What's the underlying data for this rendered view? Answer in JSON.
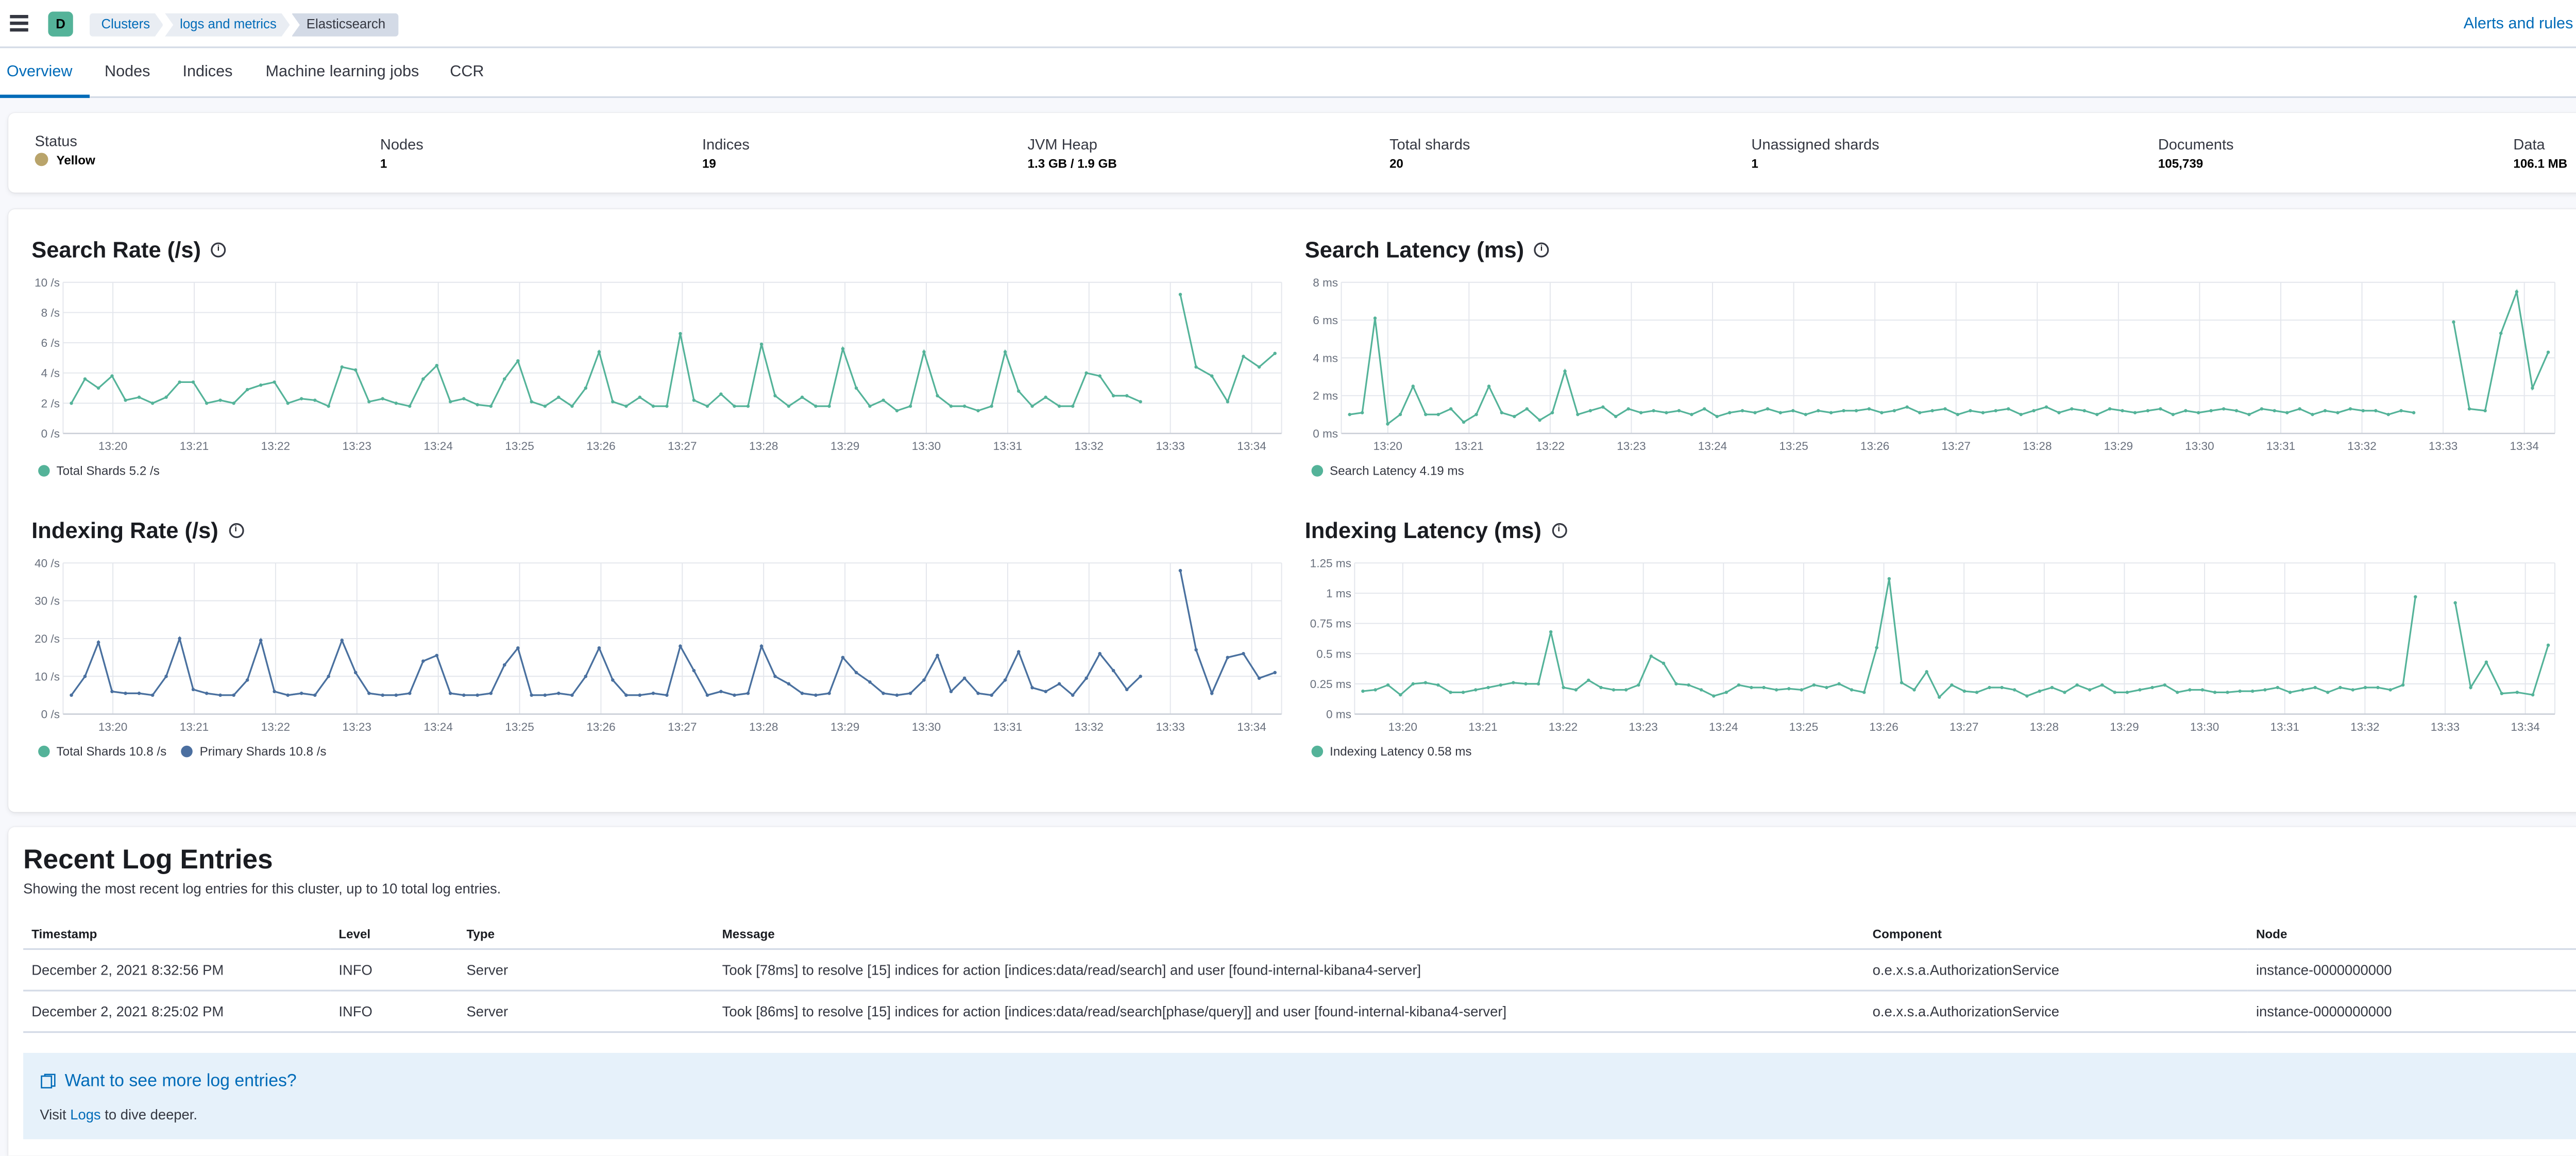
{
  "header": {
    "avatar": "D",
    "breadcrumbs": [
      "Clusters",
      "logs and metrics",
      "Elasticsearch"
    ],
    "alerts_label": "Alerts and rules"
  },
  "tabs": [
    "Overview",
    "Nodes",
    "Indices",
    "Machine learning jobs",
    "CCR"
  ],
  "status": {
    "status_label": "Status",
    "status_value": "Yellow",
    "nodes_label": "Nodes",
    "nodes_value": "1",
    "indices_label": "Indices",
    "indices_value": "19",
    "jvm_label": "JVM Heap",
    "jvm_value": "1.3 GB / 1.9 GB",
    "shards_label": "Total shards",
    "shards_value": "20",
    "unassigned_label": "Unassigned shards",
    "unassigned_value": "1",
    "docs_label": "Documents",
    "docs_value": "105,739",
    "data_label": "Data",
    "data_value": "106.1 MB",
    "colors": {
      "yellow": "#b9a46b"
    }
  },
  "chart_data": [
    {
      "type": "line",
      "title": "Search Rate (/s)",
      "y_ticks": [
        "10 /s",
        "8 /s",
        "6 /s",
        "4 /s",
        "2 /s",
        "0 /s"
      ],
      "ylim": [
        0,
        10
      ],
      "x_ticks": [
        "13:20",
        "13:21",
        "13:22",
        "13:23",
        "13:24",
        "13:25",
        "13:26",
        "13:27",
        "13:28",
        "13:29",
        "13:30",
        "13:31",
        "13:32",
        "13:33",
        "13:34"
      ],
      "grid": true,
      "legend_position": "bottom-left",
      "series": [
        {
          "name": "Total Shards",
          "legend_value": "5.2 /s",
          "color": "#54b399",
          "segments": [
            [
              2,
              3.6,
              3,
              3.8,
              2.2,
              2.4,
              2,
              2.4,
              3.4,
              3.4,
              2,
              2.2,
              2,
              2.9,
              3.2,
              3.4,
              2,
              2.3,
              2.2,
              1.8,
              4.4,
              4.2,
              2.1,
              2.3,
              2,
              1.8,
              3.6,
              4.5,
              2.1,
              2.3,
              1.9,
              1.8,
              3.6,
              4.8,
              2.1,
              1.8,
              2.4,
              1.8,
              3,
              5.4,
              2.1,
              1.8,
              2.4,
              1.8,
              1.8,
              6.6,
              2.2,
              1.8,
              2.6,
              1.8,
              1.8,
              5.9,
              2.5,
              1.8,
              2.4,
              1.8,
              1.8,
              5.6,
              3,
              1.8,
              2.2,
              1.5,
              1.8,
              5.4,
              2.5,
              1.8,
              1.8,
              1.5,
              1.8,
              5.4,
              2.8,
              1.8,
              2.4,
              1.8,
              1.8,
              4,
              3.8,
              2.5,
              2.5,
              2.1
            ],
            [
              9.2,
              4.4,
              3.8,
              2.1,
              5.1,
              4.4,
              5.3
            ]
          ]
        }
      ]
    },
    {
      "type": "line",
      "title": "Search Latency (ms)",
      "y_ticks": [
        "8 ms",
        "6 ms",
        "4 ms",
        "2 ms",
        "0 ms"
      ],
      "ylim": [
        0,
        8
      ],
      "x_ticks": [
        "13:20",
        "13:21",
        "13:22",
        "13:23",
        "13:24",
        "13:25",
        "13:26",
        "13:27",
        "13:28",
        "13:29",
        "13:30",
        "13:31",
        "13:32",
        "13:33",
        "13:34"
      ],
      "grid": true,
      "legend_position": "bottom-left",
      "series": [
        {
          "name": "Search Latency",
          "legend_value": "4.19 ms",
          "color": "#54b399",
          "segments": [
            [
              1,
              1.1,
              6.1,
              0.5,
              1,
              2.5,
              1,
              1,
              1.3,
              0.6,
              1,
              2.5,
              1.1,
              0.9,
              1.3,
              0.7,
              1.1,
              3.3,
              1,
              1.2,
              1.4,
              0.9,
              1.3,
              1.1,
              1.2,
              1.1,
              1.2,
              1,
              1.3,
              0.9,
              1.1,
              1.2,
              1.1,
              1.3,
              1.1,
              1.2,
              1,
              1.2,
              1.1,
              1.2,
              1.2,
              1.3,
              1.1,
              1.2,
              1.4,
              1.1,
              1.2,
              1.3,
              1,
              1.2,
              1.1,
              1.2,
              1.3,
              1,
              1.2,
              1.4,
              1.1,
              1.3,
              1.2,
              1,
              1.3,
              1.2,
              1.1,
              1.2,
              1.3,
              1,
              1.2,
              1.1,
              1.2,
              1.3,
              1.2,
              1,
              1.3,
              1.2,
              1.1,
              1.3,
              1,
              1.2,
              1.1,
              1.3,
              1.2,
              1.2,
              1,
              1.2,
              1.1
            ],
            [
              5.9,
              1.3,
              1.2,
              5.3,
              7.5,
              2.4,
              4.3
            ]
          ]
        }
      ]
    },
    {
      "type": "line",
      "title": "Indexing Rate (/s)",
      "y_ticks": [
        "40 /s",
        "30 /s",
        "20 /s",
        "10 /s",
        "0 /s"
      ],
      "ylim": [
        0,
        40
      ],
      "x_ticks": [
        "13:20",
        "13:21",
        "13:22",
        "13:23",
        "13:24",
        "13:25",
        "13:26",
        "13:27",
        "13:28",
        "13:29",
        "13:30",
        "13:31",
        "13:32",
        "13:33",
        "13:34"
      ],
      "grid": true,
      "legend_position": "bottom-left",
      "series": [
        {
          "name": "Total Shards",
          "legend_value": "10.8 /s",
          "color": "#54b399",
          "segments": [
            [
              5,
              10,
              19,
              6,
              5.5,
              5.5,
              5,
              10,
              20,
              6.5,
              5.5,
              5,
              5,
              9,
              19.5,
              6,
              5,
              5.5,
              5,
              10,
              19.5,
              11,
              5.5,
              5,
              5,
              5.5,
              14,
              15.5,
              5.5,
              5,
              5,
              5.5,
              13,
              17.5,
              5,
              5,
              5.5,
              5,
              10,
              17.5,
              9,
              5,
              5,
              5.5,
              5,
              18,
              11.5,
              5,
              6,
              5,
              5.5,
              18,
              10,
              8,
              5.5,
              5,
              5.5,
              15,
              11,
              8.5,
              5.5,
              5,
              5.5,
              9,
              15.5,
              6,
              9.5,
              5.5,
              5,
              9,
              16.5,
              7,
              6,
              8,
              5,
              9.5,
              16,
              11.5,
              6.5,
              10
            ],
            [
              38,
              17,
              5.5,
              15,
              16,
              9.5,
              11
            ]
          ]
        },
        {
          "name": "Primary Shards",
          "legend_value": "10.8 /s",
          "color": "#4b6fa0",
          "segments": [
            [
              5,
              10,
              19,
              6,
              5.5,
              5.5,
              5,
              10,
              20,
              6.5,
              5.5,
              5,
              5,
              9,
              19.5,
              6,
              5,
              5.5,
              5,
              10,
              19.5,
              11,
              5.5,
              5,
              5,
              5.5,
              14,
              15.5,
              5.5,
              5,
              5,
              5.5,
              13,
              17.5,
              5,
              5,
              5.5,
              5,
              10,
              17.5,
              9,
              5,
              5,
              5.5,
              5,
              18,
              11.5,
              5,
              6,
              5,
              5.5,
              18,
              10,
              8,
              5.5,
              5,
              5.5,
              15,
              11,
              8.5,
              5.5,
              5,
              5.5,
              9,
              15.5,
              6,
              9.5,
              5.5,
              5,
              9,
              16.5,
              7,
              6,
              8,
              5,
              9.5,
              16,
              11.5,
              6.5,
              10
            ],
            [
              38,
              17,
              5.5,
              15,
              16,
              9.5,
              11
            ]
          ]
        }
      ]
    },
    {
      "type": "line",
      "title": "Indexing Latency (ms)",
      "y_ticks": [
        "1.25 ms",
        "1 ms",
        "0.75 ms",
        "0.5 ms",
        "0.25 ms",
        "0 ms"
      ],
      "ylim": [
        0,
        1.25
      ],
      "x_ticks": [
        "13:20",
        "13:21",
        "13:22",
        "13:23",
        "13:24",
        "13:25",
        "13:26",
        "13:27",
        "13:28",
        "13:29",
        "13:30",
        "13:31",
        "13:32",
        "13:33",
        "13:34"
      ],
      "grid": true,
      "legend_position": "bottom-left",
      "series": [
        {
          "name": "Indexing Latency",
          "legend_value": "0.58 ms",
          "color": "#54b399",
          "segments": [
            [
              0.19,
              0.2,
              0.24,
              0.16,
              0.25,
              0.26,
              0.24,
              0.18,
              0.18,
              0.2,
              0.22,
              0.24,
              0.26,
              0.25,
              0.25,
              0.68,
              0.22,
              0.2,
              0.28,
              0.22,
              0.2,
              0.2,
              0.24,
              0.48,
              0.42,
              0.25,
              0.24,
              0.2,
              0.15,
              0.18,
              0.24,
              0.22,
              0.22,
              0.2,
              0.21,
              0.2,
              0.24,
              0.22,
              0.25,
              0.2,
              0.18,
              0.55,
              1.12,
              0.26,
              0.2,
              0.35,
              0.14,
              0.24,
              0.19,
              0.18,
              0.22,
              0.22,
              0.2,
              0.15,
              0.19,
              0.22,
              0.18,
              0.24,
              0.2,
              0.24,
              0.18,
              0.18,
              0.2,
              0.22,
              0.24,
              0.18,
              0.2,
              0.2,
              0.18,
              0.18,
              0.19,
              0.19,
              0.2,
              0.22,
              0.18,
              0.2,
              0.22,
              0.18,
              0.22,
              0.2,
              0.22,
              0.22,
              0.2,
              0.24,
              0.97
            ],
            [
              0.92,
              0.22,
              0.43,
              0.17,
              0.18,
              0.16,
              0.57
            ]
          ]
        }
      ]
    }
  ],
  "logs": {
    "title": "Recent Log Entries",
    "description": "Showing the most recent log entries for this cluster, up to 10 total log entries.",
    "columns": [
      "Timestamp",
      "Level",
      "Type",
      "Message",
      "Component",
      "Node"
    ],
    "rows": [
      [
        "December 2, 2021 8:32:56 PM",
        "INFO",
        "Server",
        "Took [78ms] to resolve [15] indices for action [indices:data/read/search] and user [found-internal-kibana4-server]",
        "o.e.x.s.a.AuthorizationService",
        "instance-0000000000"
      ],
      [
        "December 2, 2021 8:25:02 PM",
        "INFO",
        "Server",
        "Took [86ms] to resolve [15] indices for action [indices:data/read/search[phase/query]] and user [found-internal-kibana4-server]",
        "o.e.x.s.a.AuthorizationService",
        "instance-0000000000"
      ]
    ],
    "callout_title": "Want to see more log entries?",
    "callout_prefix": "Visit",
    "callout_link": "Logs",
    "callout_suffix": "to dive deeper."
  }
}
